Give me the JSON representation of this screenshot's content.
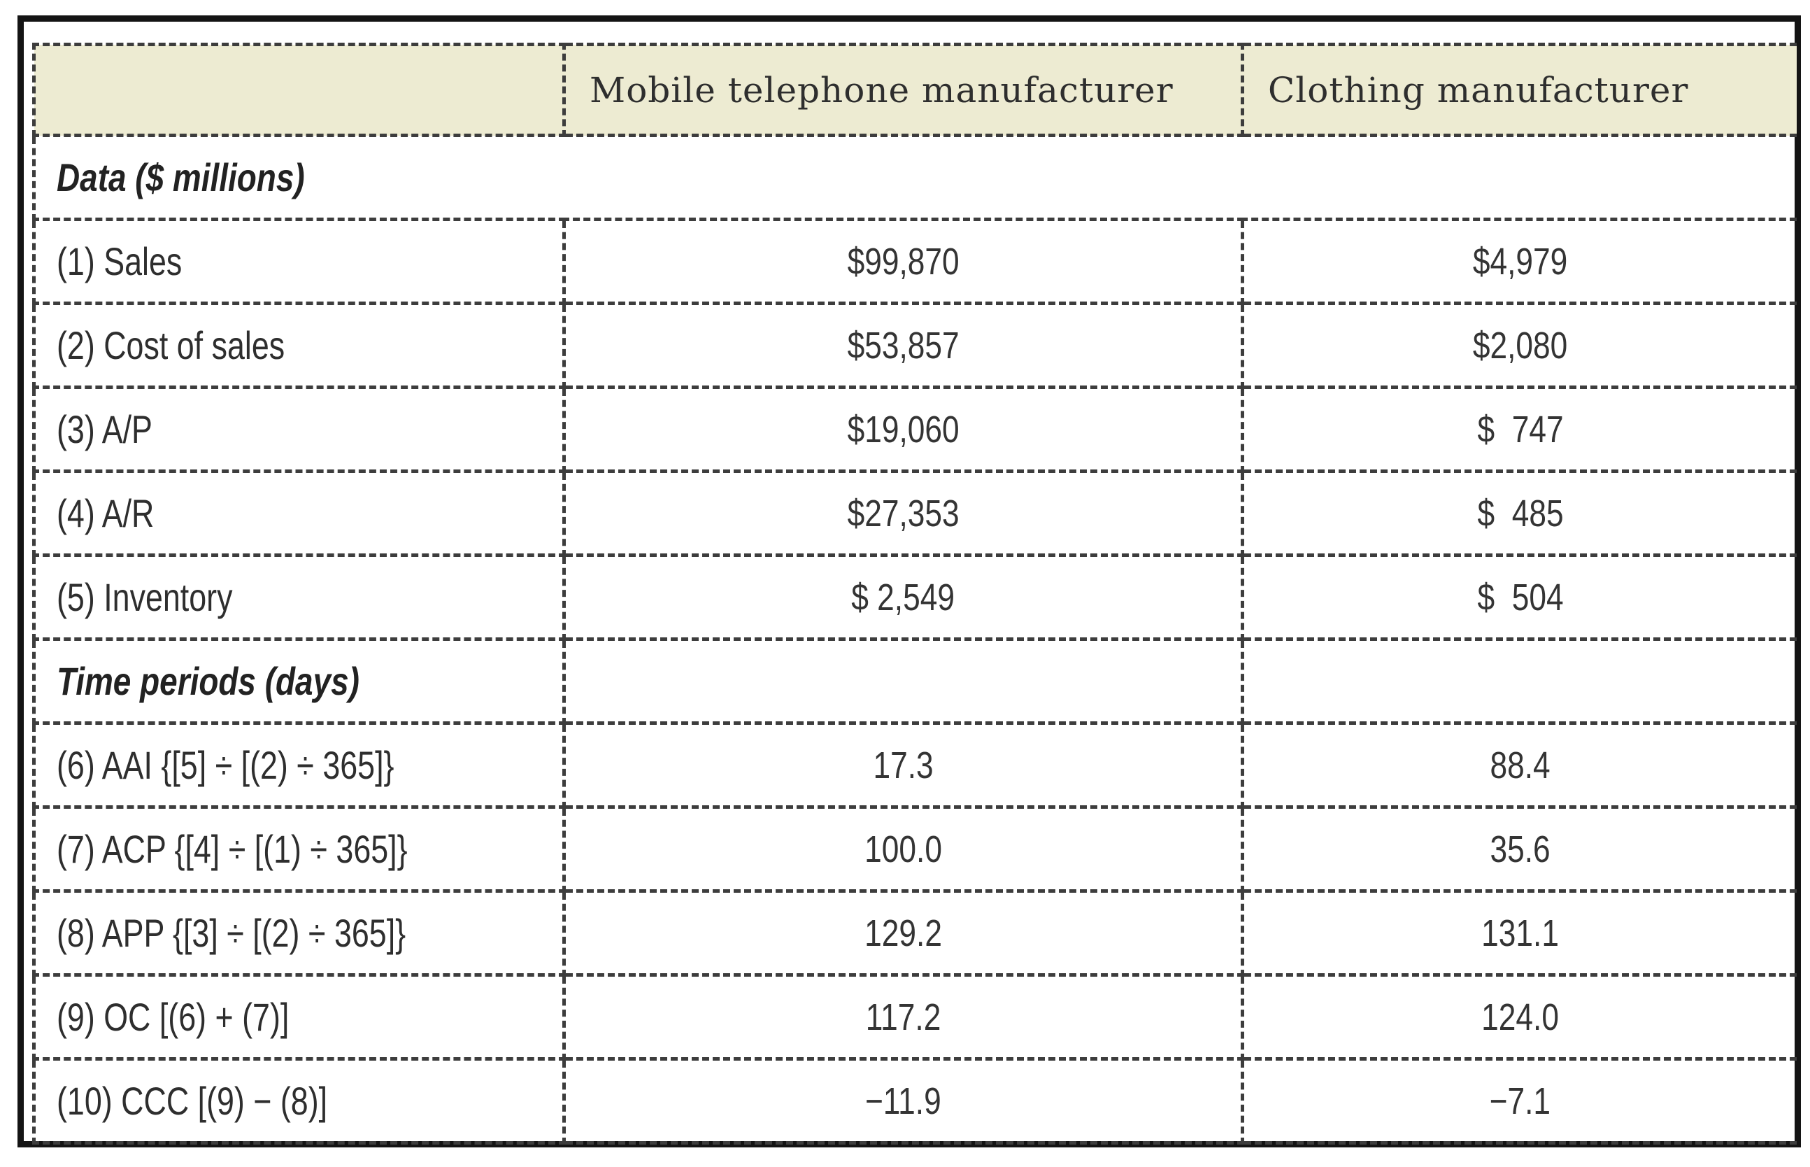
{
  "colors": {
    "header_bg": "#edebd2",
    "frame": "#141414",
    "dash": "#3d3d3d",
    "header_text": "#3b3b44",
    "body_text": "#2e2e2e"
  },
  "table": {
    "column_headers": [
      "",
      "Mobile telephone manufacturer",
      "Clothing manufacturer"
    ],
    "rows": [
      {
        "kind": "section",
        "label": "Data ($ millions)",
        "full_width": true
      },
      {
        "kind": "data",
        "label": "(1) Sales",
        "mobile": "$99,870",
        "clothing": "$4,979"
      },
      {
        "kind": "data",
        "label": "(2) Cost of sales",
        "mobile": "$53,857",
        "clothing": "$2,080"
      },
      {
        "kind": "data",
        "label": "(3) A/P",
        "mobile": "$19,060",
        "clothing": "$  747"
      },
      {
        "kind": "data",
        "label": "(4) A/R",
        "mobile": "$27,353",
        "clothing": "$  485"
      },
      {
        "kind": "data",
        "label": "(5) Inventory",
        "mobile": "$ 2,549",
        "clothing": "$  504"
      },
      {
        "kind": "section",
        "label": "Time periods (days)",
        "full_width": false
      },
      {
        "kind": "data",
        "label": "(6) AAI {[5] ÷ [(2) ÷ 365]}",
        "mobile": "17.3",
        "clothing": "88.4"
      },
      {
        "kind": "data",
        "label": "(7) ACP {[4] ÷ [(1) ÷ 365]}",
        "mobile": "100.0",
        "clothing": "35.6"
      },
      {
        "kind": "data",
        "label": "(8) APP {[3] ÷ [(2) ÷ 365]}",
        "mobile": "129.2",
        "clothing": "131.1"
      },
      {
        "kind": "data",
        "label": "(9) OC [(6) + (7)]",
        "mobile": "117.2",
        "clothing": "124.0"
      },
      {
        "kind": "data",
        "label": "(10) CCC [(9) − (8)]",
        "mobile": "−11.9",
        "clothing": "−7.1"
      }
    ]
  }
}
